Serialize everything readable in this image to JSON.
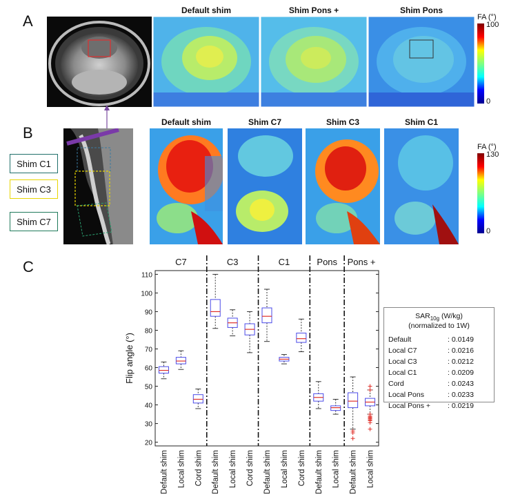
{
  "panels": {
    "a": "A",
    "b": "B",
    "c": "C"
  },
  "panel_a": {
    "titles": [
      "Default shim",
      "Shim Pons +",
      "Shim Pons"
    ],
    "colorbar": {
      "label": "FA (°)",
      "max": "100",
      "min": "0"
    }
  },
  "panel_b": {
    "titles": [
      "Default shim",
      "Shim C7",
      "Shim C3",
      "Shim C1"
    ],
    "colorbar": {
      "label": "FA (°)",
      "max": "130",
      "min": "0"
    },
    "shim_boxes": [
      {
        "label": "Shim C1",
        "color": "#1f6f6a"
      },
      {
        "label": "Shim C3",
        "color": "#e8d600"
      },
      {
        "label": "Shim C7",
        "color": "#1f7a5a"
      }
    ]
  },
  "chart_data": {
    "type": "box",
    "ylabel": "Flip angle (°)",
    "ylim": [
      18,
      112
    ],
    "yticks": [
      20,
      30,
      40,
      50,
      60,
      70,
      80,
      90,
      100,
      110
    ],
    "groups": [
      {
        "name": "C7",
        "categories": [
          "Default shim",
          "Local shim",
          "Cord shim"
        ]
      },
      {
        "name": "C3",
        "categories": [
          "Default shim",
          "Local shim",
          "Cord shim"
        ]
      },
      {
        "name": "C1",
        "categories": [
          "Default shim",
          "Local shim",
          "Cord shim"
        ]
      },
      {
        "name": "Pons",
        "categories": [
          "Default shim",
          "Local shim"
        ]
      },
      {
        "name": "Pons +",
        "categories": [
          "Default shim",
          "Local shim"
        ]
      }
    ],
    "boxes": [
      {
        "group": "C7",
        "category": "Default shim",
        "whislo": 54,
        "q1": 57,
        "med": 58.5,
        "q3": 60.5,
        "whishi": 63
      },
      {
        "group": "C7",
        "category": "Local shim",
        "whislo": 59,
        "q1": 62,
        "med": 63.5,
        "q3": 65.5,
        "whishi": 69
      },
      {
        "group": "C7",
        "category": "Cord shim",
        "whislo": 38,
        "q1": 41,
        "med": 43,
        "q3": 45.5,
        "whishi": 48.5
      },
      {
        "group": "C3",
        "category": "Default shim",
        "whislo": 81,
        "q1": 87.5,
        "med": 90,
        "q3": 96.5,
        "whishi": 110
      },
      {
        "group": "C3",
        "category": "Local shim",
        "whislo": 77,
        "q1": 81.5,
        "med": 84,
        "q3": 86.5,
        "whishi": 91
      },
      {
        "group": "C3",
        "category": "Cord shim",
        "whislo": 68,
        "q1": 77.5,
        "med": 80.5,
        "q3": 83.5,
        "whishi": 90
      },
      {
        "group": "C1",
        "category": "Default shim",
        "whislo": 74,
        "q1": 84,
        "med": 87.5,
        "q3": 92,
        "whishi": 102
      },
      {
        "group": "C1",
        "category": "Local shim",
        "whislo": 62,
        "q1": 63.5,
        "med": 64.5,
        "q3": 65.5,
        "whishi": 67
      },
      {
        "group": "C1",
        "category": "Cord shim",
        "whislo": 68.5,
        "q1": 73.5,
        "med": 75.5,
        "q3": 78.5,
        "whishi": 86
      },
      {
        "group": "Pons",
        "category": "Default shim",
        "whislo": 38,
        "q1": 42,
        "med": 44,
        "q3": 46,
        "whishi": 52.5
      },
      {
        "group": "Pons",
        "category": "Local shim",
        "whislo": 35,
        "q1": 37,
        "med": 38.5,
        "q3": 39.5,
        "whishi": 43
      },
      {
        "group": "Pons +",
        "category": "Default shim",
        "whislo": 27,
        "q1": 38.5,
        "med": 42,
        "q3": 46.5,
        "whishi": 55
      },
      {
        "group": "Pons +",
        "category": "Local shim",
        "whislo": 35,
        "q1": 39.5,
        "med": 41.5,
        "q3": 43.5,
        "whishi": 48
      }
    ],
    "outliers": [
      {
        "box": 11,
        "values": [
          22,
          25,
          26
        ]
      },
      {
        "box": 12,
        "values": [
          27,
          30.5,
          31.5,
          32,
          32.5,
          33,
          33.5,
          34,
          35,
          48,
          50
        ]
      }
    ],
    "colors": {
      "box": "#4a4ae8",
      "median": "#e0302a",
      "whisker": "#333333",
      "outlier": "#e0302a"
    }
  },
  "sar_table": {
    "title_main": "SAR",
    "title_sub": "10g",
    "title_unit": " (W/kg)",
    "subtitle": "(normalized to 1W)",
    "rows": [
      {
        "label": "Default",
        "value": ": 0.0149"
      },
      {
        "label": "Local C7",
        "value": ": 0.0216"
      },
      {
        "label": "Local C3",
        "value": ": 0.0212"
      },
      {
        "label": "Local C1",
        "value": ": 0.0209"
      },
      {
        "label": "Cord",
        "value": ": 0.0243"
      },
      {
        "label": "Local Pons",
        "value": ": 0.0233"
      },
      {
        "label": "Local Pons +",
        "value": ": 0.0219"
      }
    ]
  }
}
